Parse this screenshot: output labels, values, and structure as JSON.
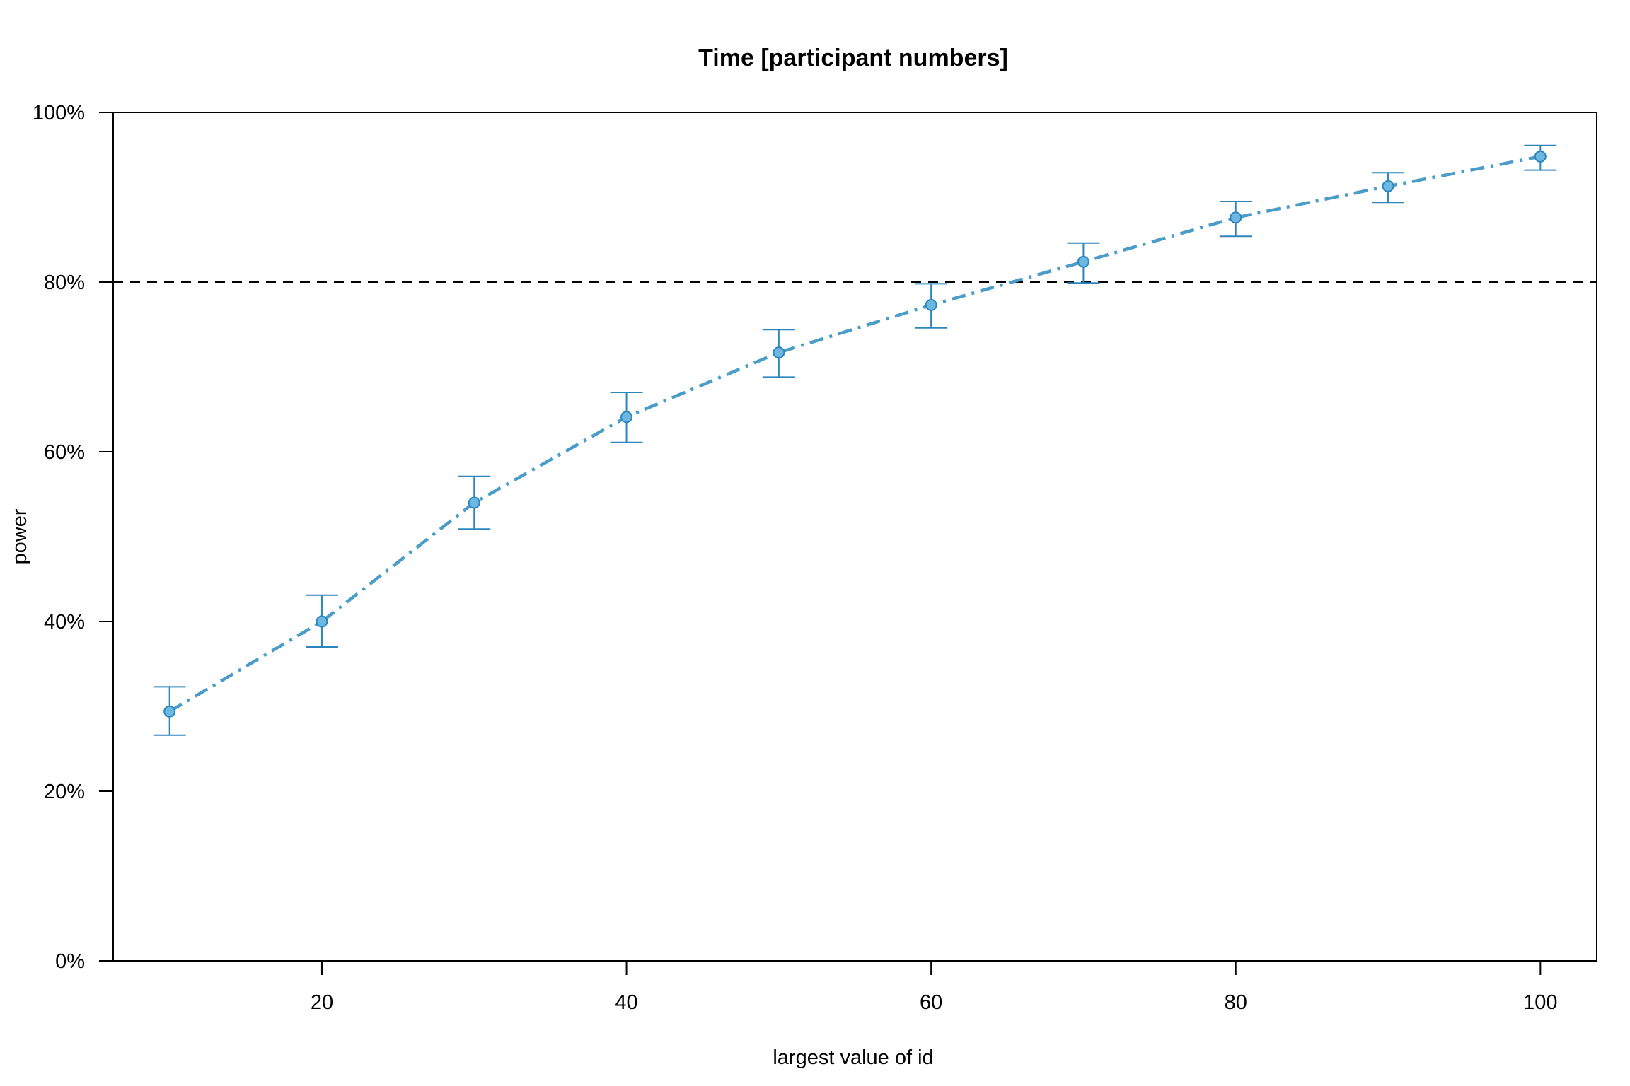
{
  "chart_data": {
    "type": "line",
    "title": "Time [participant numbers]",
    "xlabel": "largest value of id",
    "ylabel": "power",
    "xlim": [
      6.3,
      103.7
    ],
    "ylim": [
      0,
      100
    ],
    "x_ticks": [
      20,
      40,
      60,
      80,
      100
    ],
    "x_tick_labels": [
      "20",
      "40",
      "60",
      "80",
      "100"
    ],
    "y_ticks": [
      0,
      20,
      40,
      60,
      80,
      100
    ],
    "y_tick_labels": [
      "0%",
      "20%",
      "40%",
      "60%",
      "80%",
      "100%"
    ],
    "reference_line": {
      "y": 80,
      "style": "dashed",
      "color": "#000000"
    },
    "grid": false,
    "series": [
      {
        "color": "#4a9cc9",
        "error_color": "#2b86bd",
        "point_fill": "#6cb8e0",
        "x": [
          10,
          20,
          30,
          40,
          50,
          60,
          70,
          80,
          90,
          100
        ],
        "y": [
          29.4,
          40.0,
          54.0,
          64.1,
          71.7,
          77.3,
          82.4,
          87.6,
          91.3,
          94.8
        ],
        "lower": [
          26.6,
          37.0,
          50.9,
          61.1,
          68.8,
          74.6,
          79.9,
          85.4,
          89.4,
          93.2
        ],
        "upper": [
          32.3,
          43.1,
          57.1,
          67.0,
          74.4,
          79.8,
          84.6,
          89.5,
          92.9,
          96.1
        ]
      }
    ]
  }
}
